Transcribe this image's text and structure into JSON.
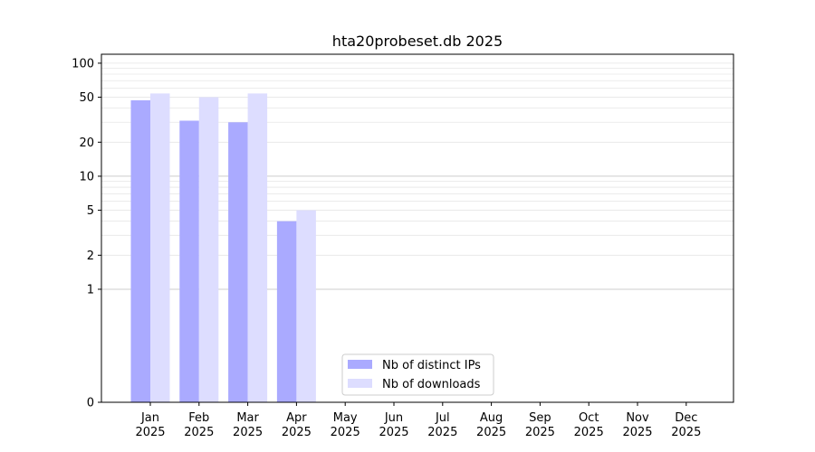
{
  "chart_data": {
    "type": "bar",
    "title": "hta20probeset.db 2025",
    "xlabel": "",
    "ylabel": "",
    "scale": "symlog",
    "ylim": [
      0,
      120
    ],
    "yticks": [
      {
        "value": 0,
        "label": "0"
      },
      {
        "value": 1,
        "label": "1"
      },
      {
        "value": 2,
        "label": "2"
      },
      {
        "value": 5,
        "label": "5"
      },
      {
        "value": 10,
        "label": "10"
      },
      {
        "value": 20,
        "label": "20"
      },
      {
        "value": 50,
        "label": "50"
      },
      {
        "value": 100,
        "label": "100"
      }
    ],
    "categories": [
      {
        "month": "Jan",
        "year": "2025"
      },
      {
        "month": "Feb",
        "year": "2025"
      },
      {
        "month": "Mar",
        "year": "2025"
      },
      {
        "month": "Apr",
        "year": "2025"
      },
      {
        "month": "May",
        "year": "2025"
      },
      {
        "month": "Jun",
        "year": "2025"
      },
      {
        "month": "Jul",
        "year": "2025"
      },
      {
        "month": "Aug",
        "year": "2025"
      },
      {
        "month": "Sep",
        "year": "2025"
      },
      {
        "month": "Oct",
        "year": "2025"
      },
      {
        "month": "Nov",
        "year": "2025"
      },
      {
        "month": "Dec",
        "year": "2025"
      }
    ],
    "series": [
      {
        "name": "Nb of distinct IPs",
        "color": "#aaaaff",
        "values": [
          47,
          31,
          30,
          4,
          0,
          0,
          0,
          0,
          0,
          0,
          0,
          0
        ]
      },
      {
        "name": "Nb of downloads",
        "color": "#ddddff",
        "values": [
          54,
          50,
          54,
          5,
          0,
          0,
          0,
          0,
          0,
          0,
          0,
          0
        ]
      }
    ],
    "grid": true,
    "legend_position": "lower-center"
  }
}
